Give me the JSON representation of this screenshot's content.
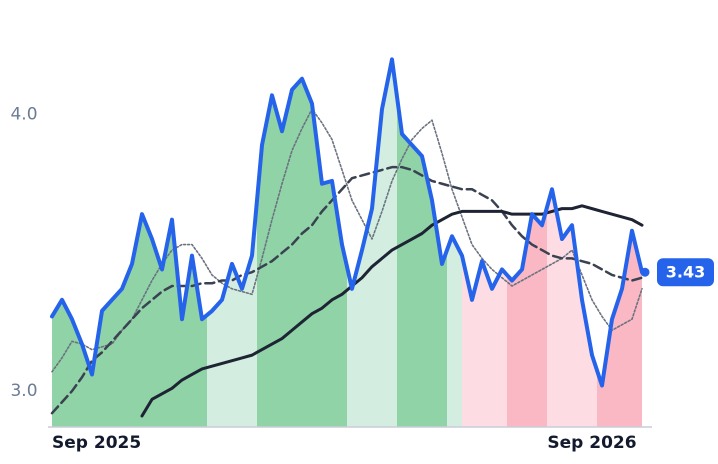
{
  "chart_data": {
    "type": "line",
    "categories": [
      "Sep 2025",
      null,
      null,
      null,
      null,
      null,
      null,
      null,
      null,
      null,
      null,
      null,
      null,
      null,
      null,
      null,
      null,
      null,
      null,
      null,
      null,
      null,
      null,
      null,
      null,
      null,
      null,
      null,
      null,
      null,
      null,
      null,
      null,
      null,
      null,
      null,
      null,
      null,
      null,
      null,
      null,
      null,
      null,
      null,
      null,
      null,
      null,
      null,
      null,
      null,
      null,
      null,
      null,
      null,
      "Sep 2026",
      null,
      null,
      null,
      null,
      null
    ],
    "series": [
      {
        "color": "#2563eb",
        "style": "solid",
        "width": 4,
        "values": [
          3.27,
          3.33,
          3.26,
          3.17,
          3.06,
          3.29,
          3.33,
          3.37,
          3.46,
          3.64,
          3.55,
          3.44,
          3.62,
          3.26,
          3.49,
          3.26,
          3.29,
          3.33,
          3.46,
          3.37,
          3.49,
          3.89,
          4.07,
          3.94,
          4.09,
          4.13,
          4.04,
          3.75,
          3.76,
          3.53,
          3.37,
          3.51,
          3.66,
          4.02,
          4.2,
          3.93,
          3.89,
          3.85,
          3.69,
          3.46,
          3.56,
          3.49,
          3.33,
          3.47,
          3.37,
          3.44,
          3.4,
          3.44,
          3.64,
          3.6,
          3.73,
          3.55,
          3.6,
          3.33,
          3.13,
          3.02,
          3.26,
          3.37,
          3.58,
          3.43
        ]
      },
      {
        "color": "#6b7280",
        "style": "dotted",
        "width": 1.6,
        "values": [
          3.07,
          3.12,
          3.18,
          3.17,
          3.15,
          3.16,
          3.17,
          3.22,
          3.26,
          3.33,
          3.4,
          3.46,
          3.51,
          3.53,
          3.53,
          3.48,
          3.42,
          3.39,
          3.37,
          3.36,
          3.35,
          3.48,
          3.62,
          3.75,
          3.87,
          3.95,
          4.02,
          3.97,
          3.91,
          3.8,
          3.69,
          3.62,
          3.55,
          3.65,
          3.76,
          3.84,
          3.91,
          3.95,
          3.98,
          3.86,
          3.73,
          3.63,
          3.53,
          3.48,
          3.44,
          3.41,
          3.38,
          3.4,
          3.42,
          3.44,
          3.46,
          3.48,
          3.51,
          3.42,
          3.33,
          3.27,
          3.22,
          3.24,
          3.26,
          3.37
        ]
      },
      {
        "color": "#3a4150",
        "style": "dashed",
        "width": 2.5,
        "values": [
          2.92,
          2.96,
          3.0,
          3.05,
          3.11,
          3.14,
          3.18,
          3.22,
          3.26,
          3.3,
          3.33,
          3.36,
          3.38,
          3.38,
          3.38,
          3.39,
          3.39,
          3.4,
          3.4,
          3.42,
          3.43,
          3.45,
          3.47,
          3.5,
          3.53,
          3.57,
          3.6,
          3.65,
          3.69,
          3.73,
          3.77,
          3.78,
          3.79,
          3.8,
          3.81,
          3.81,
          3.8,
          3.78,
          3.76,
          3.75,
          3.74,
          3.73,
          3.73,
          3.71,
          3.69,
          3.65,
          3.6,
          3.56,
          3.53,
          3.51,
          3.49,
          3.48,
          3.48,
          3.47,
          3.46,
          3.44,
          3.42,
          3.41,
          3.4,
          3.41
        ]
      },
      {
        "color": "#1e2433",
        "style": "solid",
        "width": 3,
        "values": [
          null,
          null,
          null,
          null,
          null,
          null,
          null,
          null,
          null,
          2.91,
          2.97,
          2.99,
          3.01,
          3.04,
          3.06,
          3.08,
          3.09,
          3.1,
          3.11,
          3.12,
          3.13,
          3.15,
          3.17,
          3.19,
          3.22,
          3.25,
          3.28,
          3.3,
          3.33,
          3.35,
          3.38,
          3.41,
          3.45,
          3.48,
          3.51,
          3.53,
          3.55,
          3.57,
          3.6,
          3.62,
          3.64,
          3.65,
          3.65,
          3.65,
          3.65,
          3.65,
          3.64,
          3.64,
          3.64,
          3.64,
          3.65,
          3.66,
          3.66,
          3.67,
          3.66,
          3.65,
          3.64,
          3.63,
          3.62,
          3.6
        ]
      }
    ],
    "bands": [
      {
        "from": 0,
        "to": 15.5,
        "color": "#8fd3a7"
      },
      {
        "from": 15.5,
        "to": 20.5,
        "color": "#d3ede0"
      },
      {
        "from": 20.5,
        "to": 29.5,
        "color": "#8fd3a7"
      },
      {
        "from": 29.5,
        "to": 34.5,
        "color": "#d3ede0"
      },
      {
        "from": 34.5,
        "to": 39.5,
        "color": "#8fd3a7"
      },
      {
        "from": 39.5,
        "to": 41,
        "color": "#d3ede0"
      },
      {
        "from": 41,
        "to": 45.5,
        "color": "#fddde3"
      },
      {
        "from": 45.5,
        "to": 49.5,
        "color": "#f9b8c4"
      },
      {
        "from": 49.5,
        "to": 54.5,
        "color": "#fddde3"
      },
      {
        "from": 54.5,
        "to": 59,
        "color": "#f9b8c4"
      }
    ],
    "last_price": 3.43,
    "ylim": [
      2.87,
      4.27
    ],
    "yticks": [
      {
        "value": 3,
        "label": "3.0"
      },
      {
        "value": 4,
        "label": "4.0"
      }
    ]
  }
}
